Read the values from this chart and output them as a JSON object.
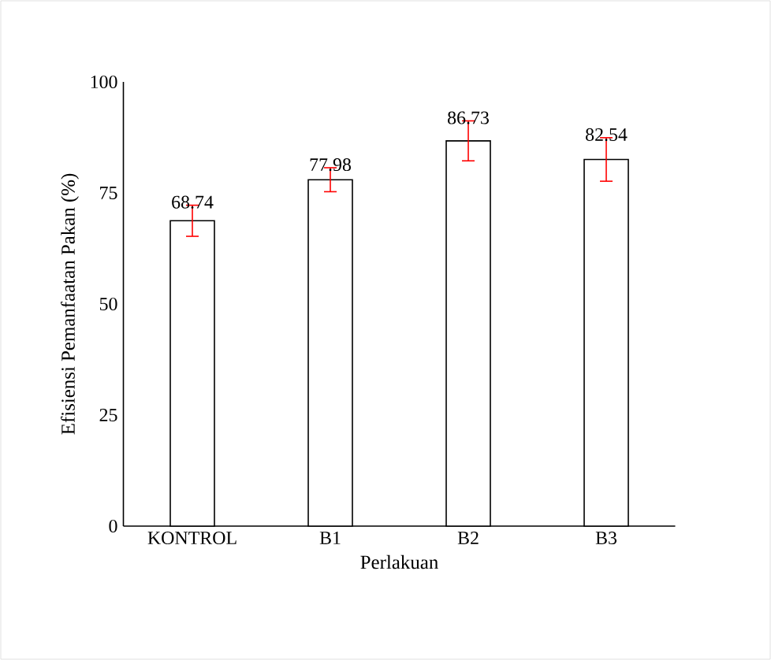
{
  "chart_data": {
    "type": "bar",
    "xlabel": "Perlakuan",
    "ylabel": "Efisiensi Pemanfaatan Pakan (%)",
    "categories": [
      "KONTROL",
      "B1",
      "B2",
      "B3"
    ],
    "values": [
      68.74,
      77.98,
      86.73,
      82.54
    ],
    "errors": [
      3.5,
      2.7,
      4.5,
      4.9
    ],
    "color": "#ffffff",
    "ylim": [
      0,
      100
    ],
    "yticks": [
      0,
      25,
      50,
      75,
      100
    ],
    "data_labels": true
  }
}
